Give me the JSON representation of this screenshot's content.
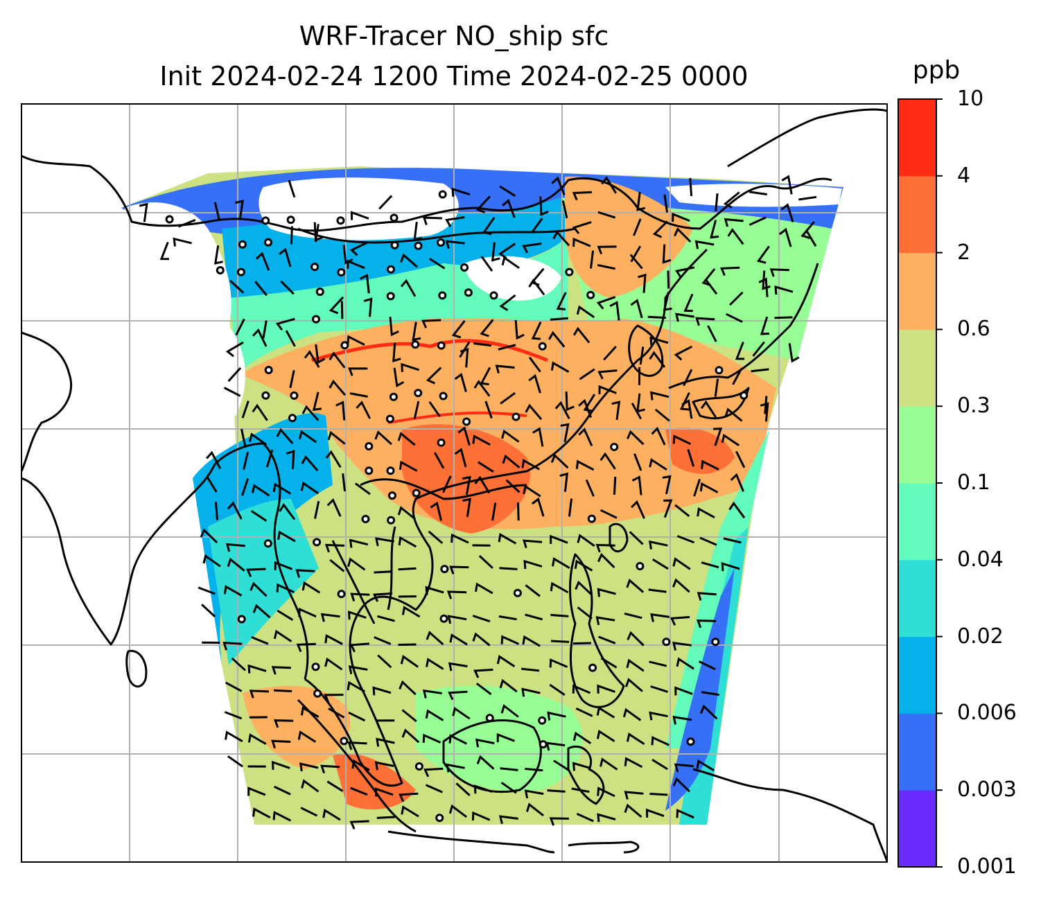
{
  "title": {
    "line1": "WRF-Tracer NO_ship sfc",
    "line2": "Init 2024-02-24 1200 Time 2024-02-25 0000"
  },
  "colorbar": {
    "unit": "ppb",
    "levels": [
      "0.001",
      "0.003",
      "0.006",
      "0.02",
      "0.04",
      "0.1",
      "0.3",
      "0.6",
      "2",
      "4",
      "10"
    ],
    "colors": [
      "#6a2bff",
      "#3570f6",
      "#04b1ea",
      "#2fdfd6",
      "#63fbbb",
      "#97fe96",
      "#cbe182",
      "#fdb05f",
      "#fe7035",
      "#ff2b12"
    ]
  },
  "map": {
    "domain_fill_dominant": "#fdb05f",
    "land_outline_color": "#000000",
    "gridline_color": "#b0b0b0",
    "wind_barb_color": "#000000"
  }
}
